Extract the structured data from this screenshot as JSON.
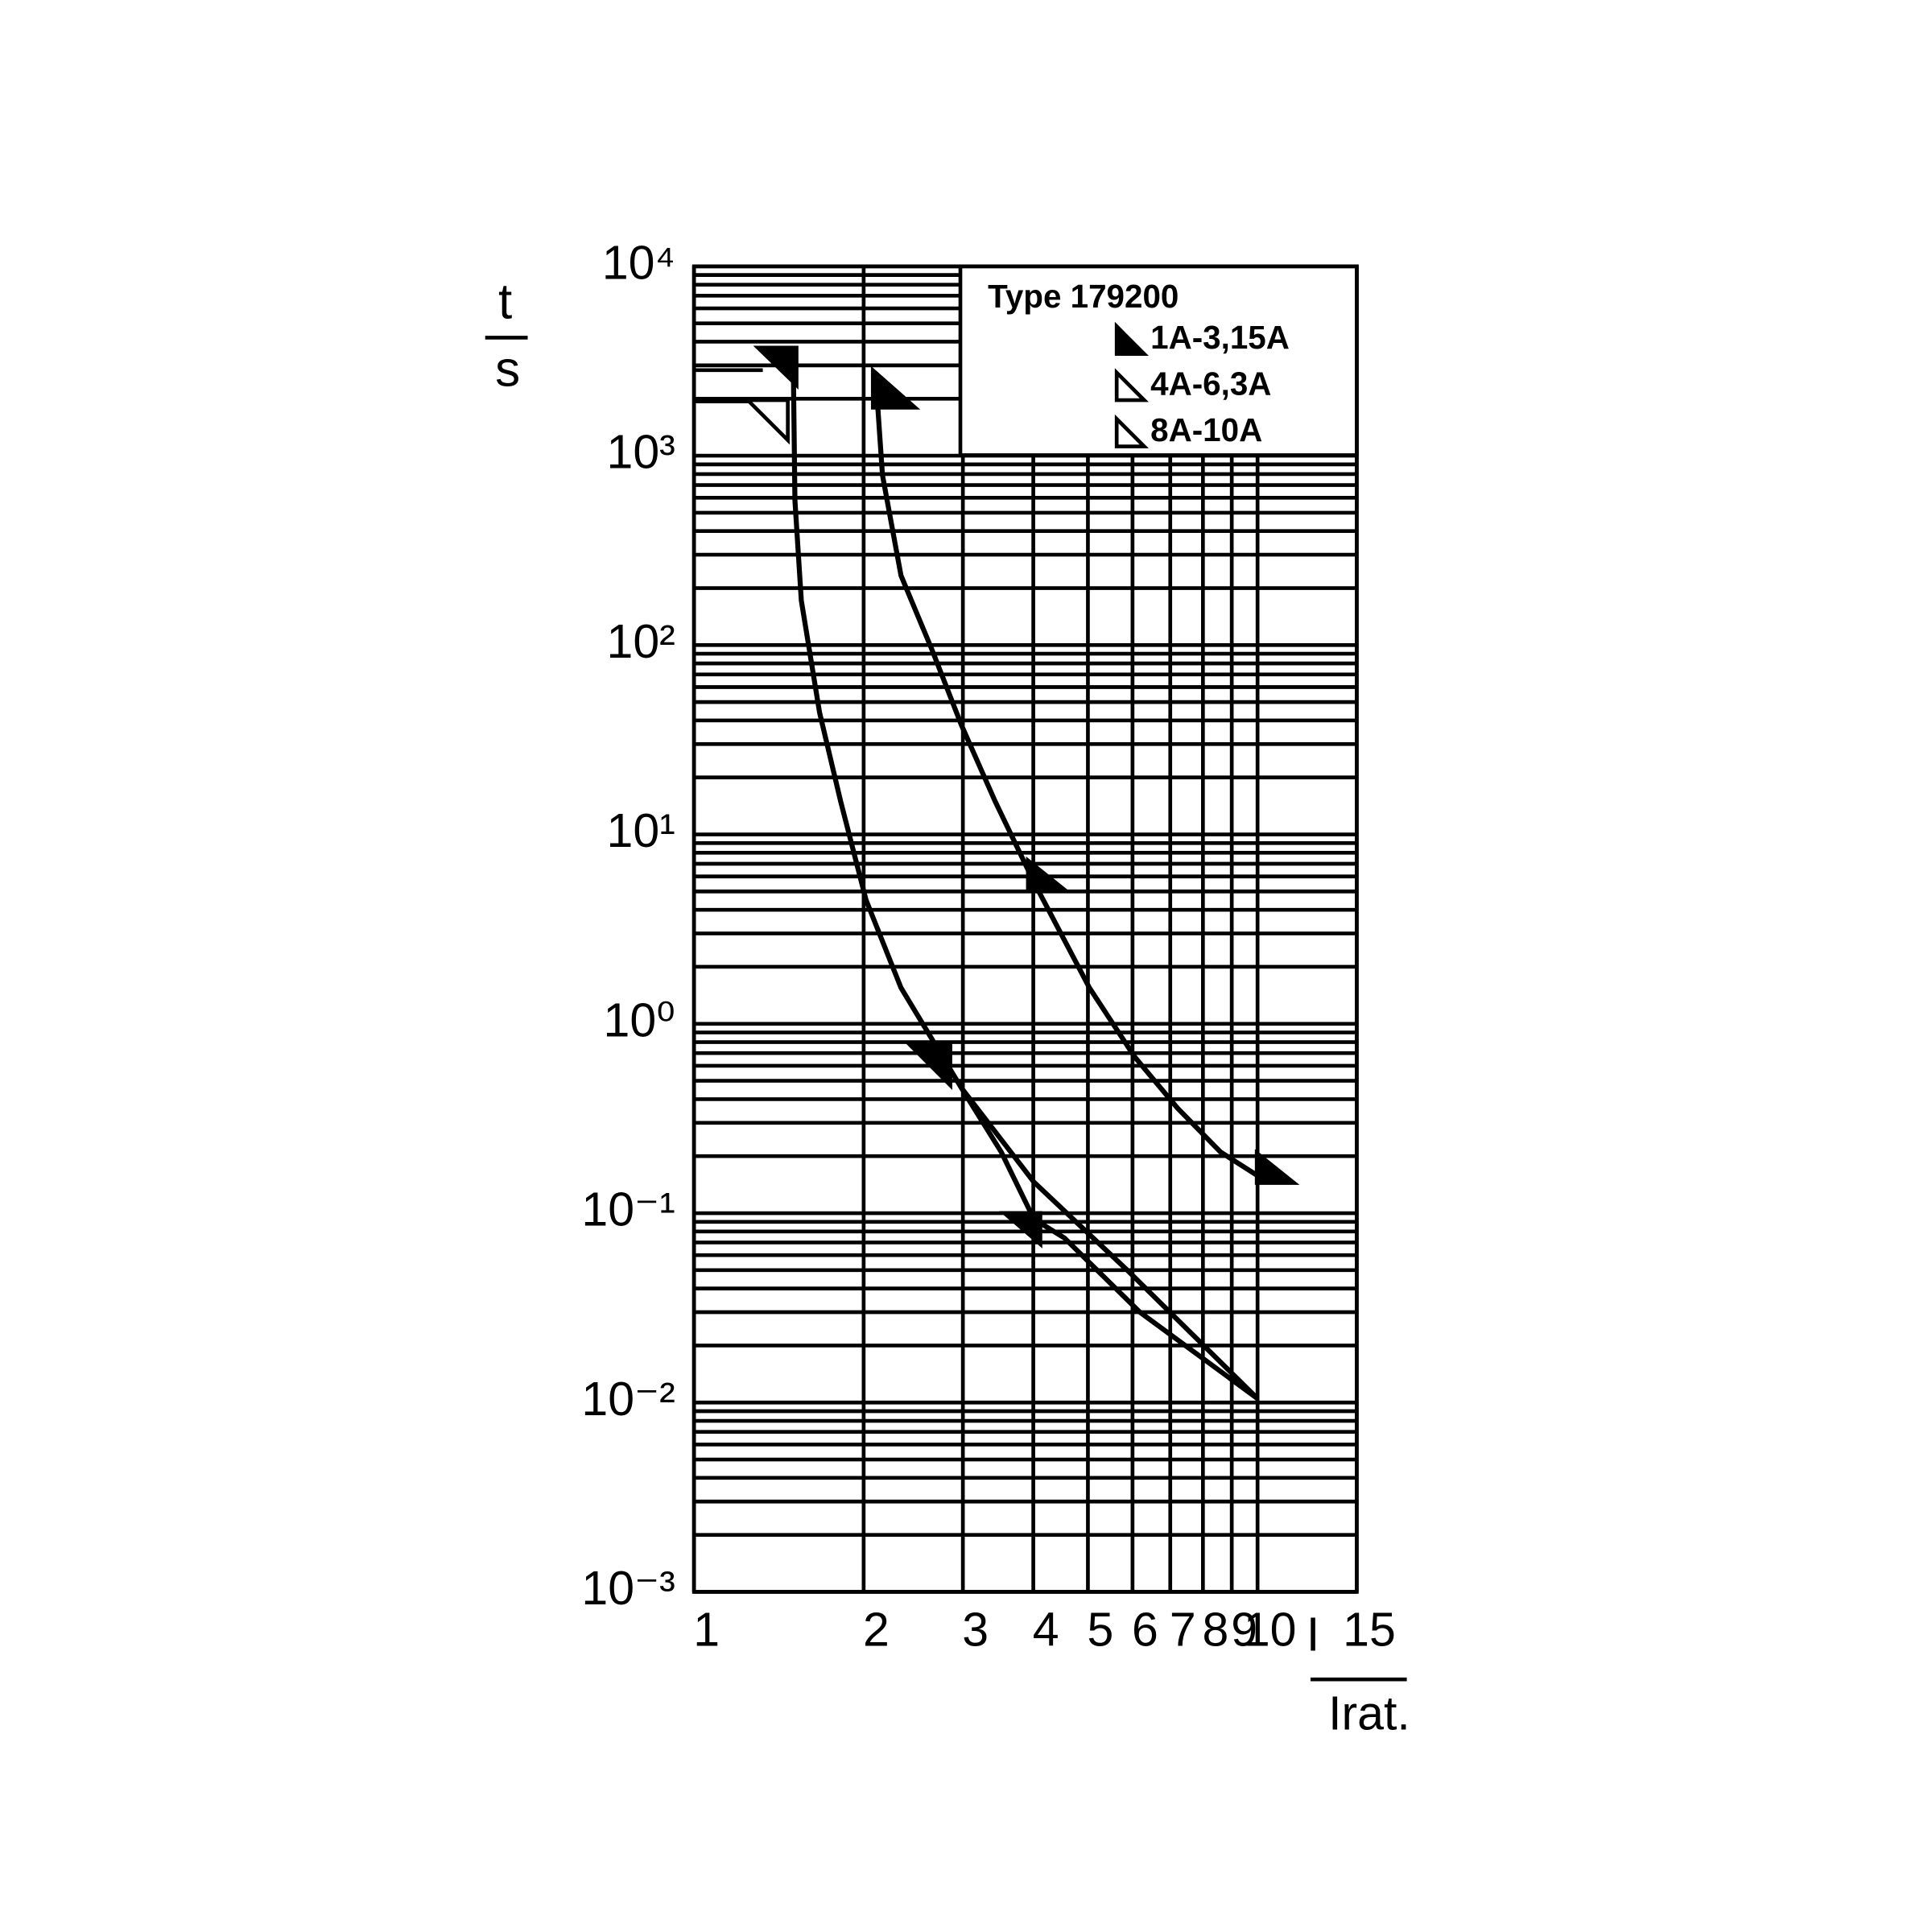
{
  "chart_data": {
    "type": "line",
    "xscale": "log",
    "yscale": "log",
    "xlim": [
      1,
      15
    ],
    "ylim": [
      0.001,
      10000
    ],
    "xticks": [
      1,
      2,
      3,
      4,
      5,
      6,
      7,
      8,
      9,
      10,
      15
    ],
    "yticks": [
      {
        "value": 10000,
        "label": "10⁴"
      },
      {
        "value": 1000,
        "label": "10³"
      },
      {
        "value": 100,
        "label": "10²"
      },
      {
        "value": 10,
        "label": "10¹"
      },
      {
        "value": 1,
        "label": "10⁰"
      },
      {
        "value": 0.1,
        "label": "10⁻¹"
      },
      {
        "value": 0.01,
        "label": "10⁻²"
      },
      {
        "value": 0.001,
        "label": "10⁻³"
      }
    ],
    "grid": true,
    "minor_grid": true,
    "ylabel": {
      "numerator": "t",
      "denominator": "s"
    },
    "xlabel": {
      "numerator": "I",
      "denominator": "Irat."
    },
    "legend": {
      "title": "Type 179200",
      "entries": [
        {
          "label": "1A-3,15A",
          "marker": "filled"
        },
        {
          "label": "4A-6,3A",
          "marker": "open"
        },
        {
          "label": "8A-10A",
          "marker": "open"
        }
      ]
    },
    "series": [
      {
        "color": "#000000",
        "x": [
          1.5,
          1.51,
          1.55,
          1.67,
          1.82,
          2.02,
          2.33,
          2.98,
          3.51,
          4.01,
          4.54,
          6.18,
          10
        ],
        "values": [
          3000,
          580,
          172,
          44,
          15,
          4.5,
          1.55,
          0.46,
          0.21,
          0.093,
          0.074,
          0.03,
          0.0105
        ]
      },
      {
        "color": "#000000",
        "x": [
          2.98,
          4.01,
          5.87,
          10
        ],
        "values": [
          0.46,
          0.146,
          0.05,
          0.0105
        ]
      },
      {
        "color": "#000000",
        "x": [
          2.1,
          2.16,
          2.33,
          2.65,
          2.98,
          3.42,
          4.01,
          5.03,
          6.05,
          7.2,
          8.6,
          10
        ],
        "values": [
          2660,
          790,
          233,
          93,
          38,
          15,
          5.6,
          1.55,
          0.67,
          0.36,
          0.21,
          0.158
        ]
      }
    ]
  }
}
